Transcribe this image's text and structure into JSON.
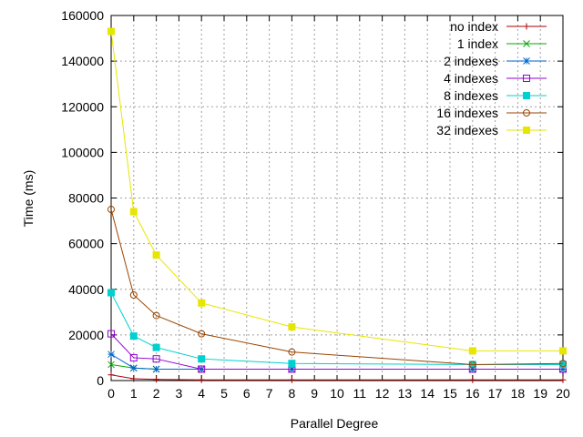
{
  "chart_data": {
    "type": "line",
    "title": "",
    "xlabel": "Parallel Degree",
    "ylabel": "Time (ms)",
    "xlim": [
      0,
      20
    ],
    "ylim": [
      0,
      160000
    ],
    "x_ticks": [
      0,
      1,
      2,
      3,
      4,
      5,
      6,
      7,
      8,
      9,
      10,
      11,
      12,
      13,
      14,
      15,
      16,
      17,
      18,
      19,
      20
    ],
    "y_ticks": [
      0,
      20000,
      40000,
      60000,
      80000,
      100000,
      120000,
      140000,
      160000
    ],
    "grid": true,
    "legend_position": "top-right",
    "x": [
      0,
      1,
      2,
      4,
      8,
      16,
      20
    ],
    "series": [
      {
        "name": "no index",
        "color": "#aa0000",
        "marker": "plus",
        "values": [
          2500,
          800,
          500,
          300,
          300,
          300,
          300
        ]
      },
      {
        "name": "1 index",
        "color": "#00aa00",
        "marker": "cross",
        "values": [
          7000,
          5500,
          5000,
          5000,
          5000,
          5000,
          5000
        ]
      },
      {
        "name": "2 indexes",
        "color": "#0066cc",
        "marker": "star",
        "values": [
          11500,
          5500,
          5000,
          5000,
          5000,
          5000,
          5000
        ]
      },
      {
        "name": "4 indexes",
        "color": "#9400d3",
        "marker": "open-square",
        "values": [
          20500,
          10000,
          9500,
          5000,
          5000,
          5000,
          5000
        ]
      },
      {
        "name": "8 indexes",
        "color": "#00d0d0",
        "marker": "filled-square",
        "values": [
          38500,
          19500,
          14500,
          9500,
          7500,
          7000,
          7000
        ]
      },
      {
        "name": "16 indexes",
        "color": "#994400",
        "marker": "open-circle",
        "values": [
          75000,
          37500,
          28500,
          20500,
          12500,
          7000,
          7500
        ]
      },
      {
        "name": "32 indexes",
        "color": "#e6e600",
        "marker": "filled-square",
        "values": [
          153000,
          74000,
          55000,
          34000,
          23500,
          13000,
          13000
        ]
      }
    ]
  }
}
